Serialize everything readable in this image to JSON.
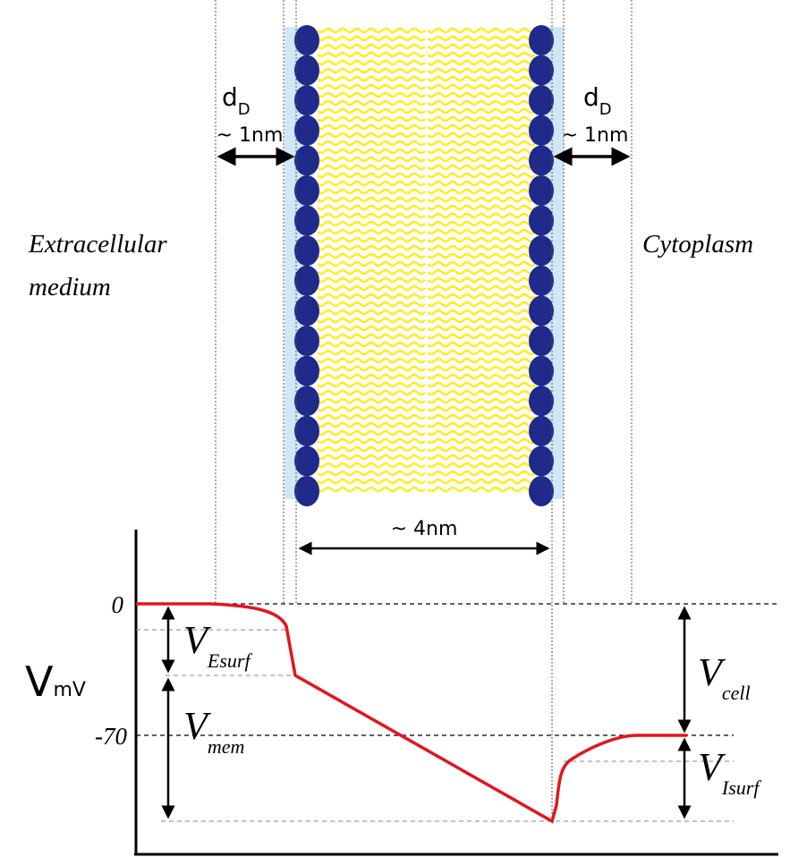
{
  "left_dd": {
    "main": "d",
    "sub": "D"
  },
  "left_dist": "~ 1nm",
  "right_dd": {
    "main": "d",
    "sub": "D"
  },
  "right_dist": "~ 1nm",
  "extracellular": [
    "Extracellular",
    "medium"
  ],
  "cytoplasm": "Cytoplasm",
  "bilayer_width": "~ 4nm",
  "plot": {
    "zero": "0",
    "rest": "-70",
    "axis": {
      "main": "V",
      "sub": "mV"
    },
    "v_esurf": {
      "main": "V",
      "sub": "Esurf"
    },
    "v_mem": {
      "main": "V",
      "sub": "mem"
    },
    "v_cell": {
      "main": "V",
      "sub": "cell"
    },
    "v_isurf": {
      "main": "V",
      "sub": "Isurf"
    }
  }
}
